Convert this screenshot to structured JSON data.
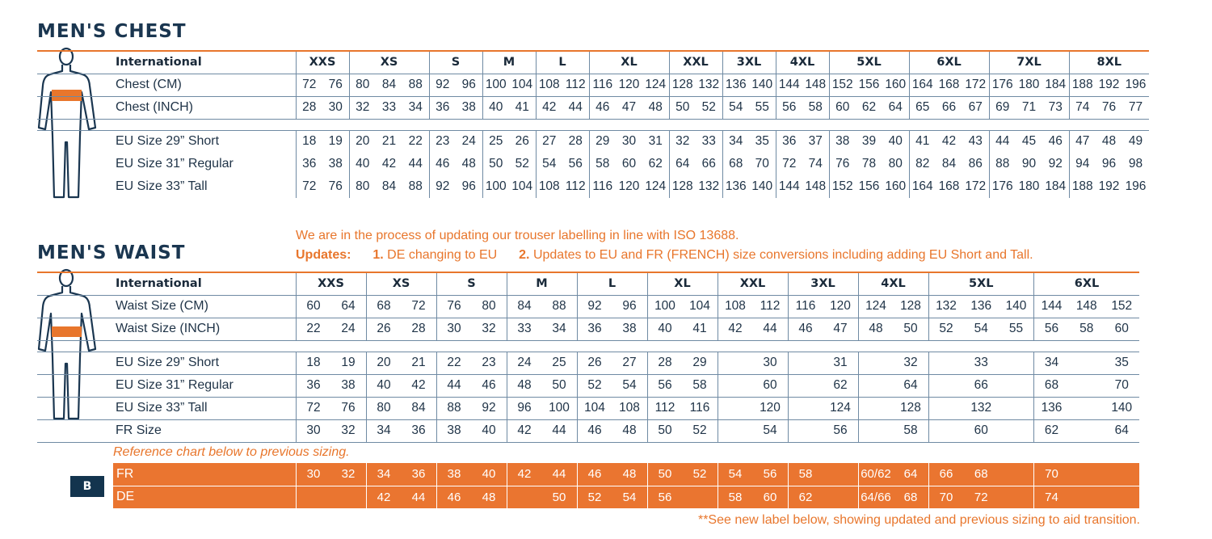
{
  "chest": {
    "title": "MEN'S CHEST",
    "international_label": "International",
    "sizes": [
      {
        "label": "XXS",
        "span": 2
      },
      {
        "label": "XS",
        "span": 3
      },
      {
        "label": "S",
        "span": 2
      },
      {
        "label": "M",
        "span": 2
      },
      {
        "label": "L",
        "span": 2
      },
      {
        "label": "XL",
        "span": 3
      },
      {
        "label": "XXL",
        "span": 2
      },
      {
        "label": "3XL",
        "span": 2
      },
      {
        "label": "4XL",
        "span": 2
      },
      {
        "label": "5XL",
        "span": 3
      },
      {
        "label": "6XL",
        "span": 3
      },
      {
        "label": "7XL",
        "span": 3
      },
      {
        "label": "8XL",
        "span": 3
      }
    ],
    "rows_top": [
      {
        "label": "Chest (CM)",
        "values": [
          "72",
          "76",
          "80",
          "84",
          "88",
          "92",
          "96",
          "100",
          "104",
          "108",
          "112",
          "116",
          "120",
          "124",
          "128",
          "132",
          "136",
          "140",
          "144",
          "148",
          "152",
          "156",
          "160",
          "164",
          "168",
          "172",
          "176",
          "180",
          "184",
          "188",
          "192",
          "196"
        ]
      },
      {
        "label": "Chest (INCH)",
        "values": [
          "28",
          "30",
          "32",
          "33",
          "34",
          "36",
          "38",
          "40",
          "41",
          "42",
          "44",
          "46",
          "47",
          "48",
          "50",
          "52",
          "54",
          "55",
          "56",
          "58",
          "60",
          "62",
          "64",
          "65",
          "66",
          "67",
          "69",
          "71",
          "73",
          "74",
          "76",
          "77"
        ]
      }
    ],
    "rows_bottom": [
      {
        "label": "EU Size 29” Short",
        "values": [
          "18",
          "19",
          "20",
          "21",
          "22",
          "23",
          "24",
          "25",
          "26",
          "27",
          "28",
          "29",
          "30",
          "31",
          "32",
          "33",
          "34",
          "35",
          "36",
          "37",
          "38",
          "39",
          "40",
          "41",
          "42",
          "43",
          "44",
          "45",
          "46",
          "47",
          "48",
          "49"
        ]
      },
      {
        "label": "EU Size 31” Regular",
        "values": [
          "36",
          "38",
          "40",
          "42",
          "44",
          "46",
          "48",
          "50",
          "52",
          "54",
          "56",
          "58",
          "60",
          "62",
          "64",
          "66",
          "68",
          "70",
          "72",
          "74",
          "76",
          "78",
          "80",
          "82",
          "84",
          "86",
          "88",
          "90",
          "92",
          "94",
          "96",
          "98"
        ]
      },
      {
        "label": "EU Size 33” Tall",
        "values": [
          "72",
          "76",
          "80",
          "84",
          "88",
          "92",
          "96",
          "100",
          "104",
          "108",
          "112",
          "116",
          "120",
          "124",
          "128",
          "132",
          "136",
          "140",
          "144",
          "148",
          "152",
          "156",
          "160",
          "164",
          "168",
          "172",
          "176",
          "180",
          "184",
          "188",
          "192",
          "196"
        ]
      }
    ]
  },
  "waist": {
    "title": "MEN'S WAIST",
    "notice": "We are in the process of updating our trouser labelling in line with ISO 13688.",
    "updates_label": "Updates:",
    "update_1_num": "1.",
    "update_1_text": "DE changing to EU",
    "update_2_num": "2.",
    "update_2_text": "Updates to EU and FR (FRENCH) size conversions including adding EU Short and Tall.",
    "international_label": "International",
    "sizes": [
      {
        "label": "XXS",
        "span": 2
      },
      {
        "label": "XS",
        "span": 2
      },
      {
        "label": "S",
        "span": 2
      },
      {
        "label": "M",
        "span": 2
      },
      {
        "label": "L",
        "span": 2
      },
      {
        "label": "XL",
        "span": 2
      },
      {
        "label": "XXL",
        "span": 2
      },
      {
        "label": "3XL",
        "span": 2
      },
      {
        "label": "4XL",
        "span": 2
      },
      {
        "label": "5XL",
        "span": 3
      },
      {
        "label": "6XL",
        "span": 3
      }
    ],
    "rows_top": [
      {
        "label": "Waist Size (CM)",
        "values": [
          "60",
          "64",
          "68",
          "72",
          "76",
          "80",
          "84",
          "88",
          "92",
          "96",
          "100",
          "104",
          "108",
          "112",
          "116",
          "120",
          "124",
          "128",
          "132",
          "136",
          "140",
          "144",
          "148",
          "152"
        ]
      },
      {
        "label": "Waist Size (INCH)",
        "values": [
          "22",
          "24",
          "26",
          "28",
          "30",
          "32",
          "33",
          "34",
          "36",
          "38",
          "40",
          "41",
          "42",
          "44",
          "46",
          "47",
          "48",
          "50",
          "52",
          "54",
          "55",
          "56",
          "58",
          "60"
        ]
      }
    ],
    "rows_bottom": [
      {
        "label": "EU Size 29” Short",
        "values": [
          "18",
          "19",
          "20",
          "21",
          "22",
          "23",
          "24",
          "25",
          "26",
          "27",
          "28",
          "29",
          "",
          "30",
          "",
          "31",
          "",
          "32",
          "",
          "33",
          "",
          "34",
          "",
          "35"
        ]
      },
      {
        "label": "EU Size 31” Regular",
        "values": [
          "36",
          "38",
          "40",
          "42",
          "44",
          "46",
          "48",
          "50",
          "52",
          "54",
          "56",
          "58",
          "",
          "60",
          "",
          "62",
          "",
          "64",
          "",
          "66",
          "",
          "68",
          "",
          "70"
        ]
      },
      {
        "label": "EU Size 33” Tall",
        "values": [
          "72",
          "76",
          "80",
          "84",
          "88",
          "92",
          "96",
          "100",
          "104",
          "108",
          "112",
          "116",
          "",
          "120",
          "",
          "124",
          "",
          "128",
          "",
          "132",
          "",
          "136",
          "",
          "140"
        ]
      },
      {
        "label": "FR Size",
        "values": [
          "30",
          "32",
          "34",
          "36",
          "38",
          "40",
          "42",
          "44",
          "46",
          "48",
          "50",
          "52",
          "",
          "54",
          "",
          "56",
          "",
          "58",
          "",
          "60",
          "",
          "62",
          "",
          "64"
        ]
      }
    ],
    "reference_note": "Reference chart below to previous sizing.",
    "legacy": {
      "badge": "B",
      "rows": [
        {
          "label": "FR",
          "values": [
            "30",
            "32",
            "34",
            "36",
            "38",
            "40",
            "42",
            "44",
            "46",
            "48",
            "50",
            "52",
            "54",
            "56",
            "58",
            "",
            "60/62",
            "64",
            "66",
            "68",
            "",
            "70",
            "",
            ""
          ]
        },
        {
          "label": "DE",
          "values": [
            "",
            "",
            "42",
            "44",
            "46",
            "48",
            "",
            "50",
            "52",
            "54",
            "56",
            "",
            "58",
            "60",
            "62",
            "",
            "64/66",
            "68",
            "70",
            "72",
            "",
            "74",
            "",
            ""
          ]
        }
      ]
    },
    "footnote": "**See new label below, showing updated and previous sizing to aid transition."
  },
  "colors": {
    "accent_orange": "#e8762c",
    "navy": "#1a3650",
    "rule_blue": "#6f8aa3"
  },
  "icons": [
    "male-figure-icon",
    "chest-band-icon",
    "waist-band-icon"
  ]
}
